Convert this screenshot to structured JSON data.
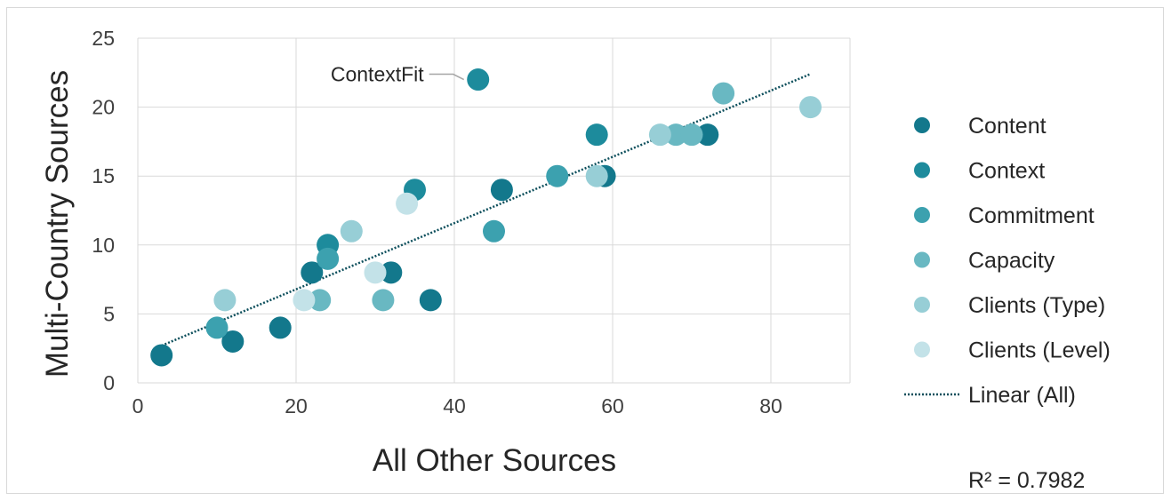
{
  "chart_data": {
    "type": "scatter",
    "xlabel": "All Other Sources",
    "ylabel": "Multi-Country Sources",
    "xlim": [
      0,
      90
    ],
    "ylim": [
      0,
      25
    ],
    "xticks": [
      0,
      20,
      40,
      60,
      80
    ],
    "yticks": [
      0,
      5,
      10,
      15,
      20,
      25
    ],
    "grid": true,
    "legend_position": "right",
    "series": [
      {
        "name": "Content",
        "color": "#13788c",
        "points": [
          [
            3,
            2
          ],
          [
            12,
            3
          ],
          [
            18,
            4
          ],
          [
            22,
            8
          ],
          [
            32,
            8
          ],
          [
            37,
            6
          ],
          [
            46,
            14
          ],
          [
            59,
            15
          ],
          [
            72,
            18
          ]
        ]
      },
      {
        "name": "Context",
        "color": "#1d8b9c",
        "points": [
          [
            24,
            10
          ],
          [
            35,
            14
          ],
          [
            43,
            22
          ],
          [
            58,
            18
          ]
        ]
      },
      {
        "name": "Commitment",
        "color": "#3ca1af",
        "points": [
          [
            10,
            4
          ],
          [
            24,
            9
          ],
          [
            45,
            11
          ],
          [
            53,
            15
          ]
        ]
      },
      {
        "name": "Capacity",
        "color": "#69b8c2",
        "points": [
          [
            23,
            6
          ],
          [
            31,
            6
          ],
          [
            68,
            18
          ],
          [
            70,
            18
          ],
          [
            74,
            21
          ]
        ]
      },
      {
        "name": "Clients (Type)",
        "color": "#97ced6",
        "points": [
          [
            11,
            6
          ],
          [
            27,
            11
          ],
          [
            58,
            15
          ],
          [
            66,
            18
          ],
          [
            85,
            20
          ]
        ]
      },
      {
        "name": "Clients (Level)",
        "color": "#c3e2e8",
        "points": [
          [
            21,
            6
          ],
          [
            30,
            8
          ],
          [
            34,
            13
          ]
        ]
      }
    ],
    "trendline": {
      "name": "Linear (All)",
      "color": "#0d4f5c",
      "x": [
        3,
        85
      ],
      "y": [
        2.7,
        22.4
      ],
      "r_squared": "R² = 0.7982"
    },
    "annotations": [
      {
        "text": "ContextFit",
        "point": [
          43,
          22
        ]
      }
    ]
  }
}
